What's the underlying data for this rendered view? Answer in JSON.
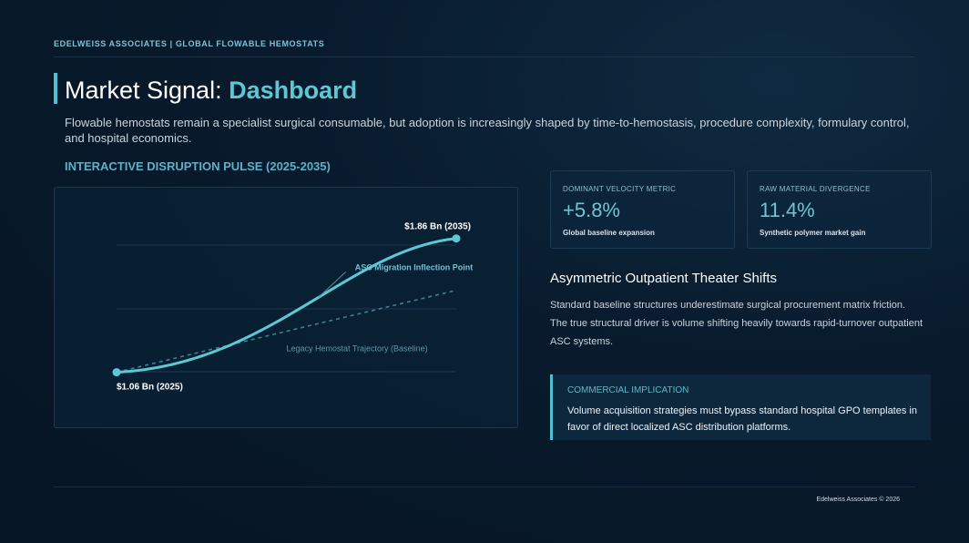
{
  "header": {
    "topline": "EDELWEISS ASSOCIATES | GLOBAL FLOWABLE HEMOSTATS",
    "title_prefix": "Market Signal:",
    "title_accent": "Dashboard",
    "subtitle": "Flowable hemostats remain a specialist surgical consumable, but adoption is increasingly shaped by time-to-hemostasis, procedure complexity, formulary control, and hospital economics."
  },
  "pulse": {
    "title": "INTERACTIVE DISRUPTION PULSE (2025-2035)"
  },
  "chart_data": {
    "type": "line",
    "x": [
      2025,
      2035
    ],
    "series": [
      {
        "name": "",
        "role": "primary",
        "values": [
          1.06,
          1.86
        ],
        "color": "#5ec7d4"
      },
      {
        "name": "Legacy Hemostat Trajectory (Baseline)",
        "role": "baseline",
        "values": [
          1.06,
          1.55
        ],
        "color": "#3f7f90"
      }
    ],
    "start_label": "$1.06 Bn (2025)",
    "end_label": "$1.86 Bn (2035)",
    "annotation": "ASC Migration Inflection Point",
    "annotation_x": 2032,
    "ylim": [
      0.9,
      2.0
    ],
    "grid": true
  },
  "metrics": [
    {
      "label": "DOMINANT VELOCITY METRIC",
      "value": "+5.8%",
      "desc": "Global baseline expansion"
    },
    {
      "label": "RAW MATERIAL DIVERGENCE",
      "value": "11.4%",
      "desc": "Synthetic polymer market gain"
    }
  ],
  "asymmetric": {
    "title": "Asymmetric Outpatient Theater Shifts",
    "body": "Standard baseline structures underestimate surgical procurement matrix friction. The true structural driver is volume shifting heavily towards rapid-turnover outpatient ASC systems."
  },
  "implication": {
    "title": "COMMERCIAL IMPLICATION",
    "body": "Volume acquisition strategies must bypass standard hospital GPO templates in favor of direct localized ASC distribution platforms."
  },
  "footer": {
    "text": "Edelweiss Associates © 2026"
  },
  "colors": {
    "accent": "#5ec7d4",
    "background": "#081a2c"
  }
}
